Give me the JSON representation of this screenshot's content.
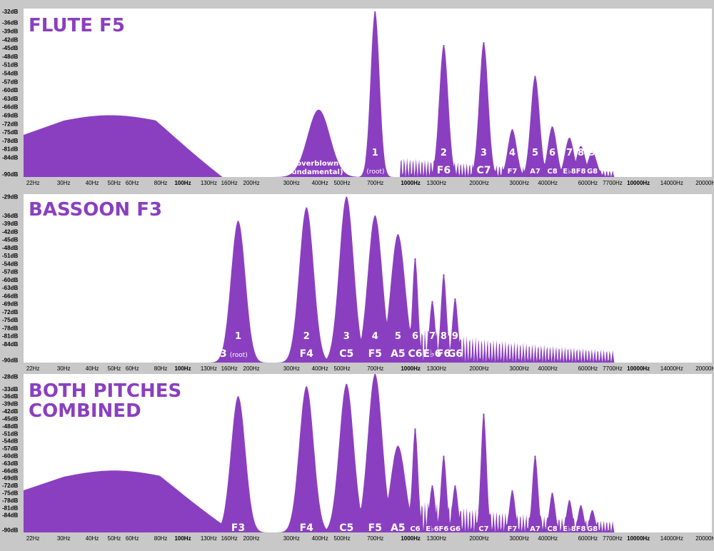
{
  "colors": {
    "fill": "#8a3fc0",
    "plot_bg": "#ffffff",
    "frame_bg": "#c8c8c8",
    "label": "#ffffff"
  },
  "x_axis": {
    "scale": "log",
    "range_hz": [
      20,
      21000
    ],
    "ticks": [
      {
        "hz": 22,
        "label": "22Hz"
      },
      {
        "hz": 30,
        "label": "30Hz"
      },
      {
        "hz": 40,
        "label": "40Hz"
      },
      {
        "hz": 50,
        "label": "50Hz"
      },
      {
        "hz": 60,
        "label": "60Hz"
      },
      {
        "hz": 80,
        "label": "80Hz"
      },
      {
        "hz": 100,
        "label": "100Hz",
        "major": true
      },
      {
        "hz": 130,
        "label": "130Hz"
      },
      {
        "hz": 160,
        "label": "160Hz"
      },
      {
        "hz": 200,
        "label": "200Hz"
      },
      {
        "hz": 300,
        "label": "300Hz"
      },
      {
        "hz": 400,
        "label": "400Hz"
      },
      {
        "hz": 500,
        "label": "500Hz"
      },
      {
        "hz": 700,
        "label": "700Hz"
      },
      {
        "hz": 1000,
        "label": "1000Hz",
        "major": true
      },
      {
        "hz": 1300,
        "label": "1300Hz"
      },
      {
        "hz": 2000,
        "label": "2000Hz"
      },
      {
        "hz": 3000,
        "label": "3000Hz"
      },
      {
        "hz": 4000,
        "label": "4000Hz"
      },
      {
        "hz": 6000,
        "label": "6000Hz"
      },
      {
        "hz": 7700,
        "label": "7700Hz"
      },
      {
        "hz": 10000,
        "label": "10000Hz",
        "major": true
      },
      {
        "hz": 14000,
        "label": "14000Hz"
      },
      {
        "hz": 20000,
        "label": "20000Hz"
      }
    ]
  },
  "chart_data": [
    {
      "type": "area",
      "title": "FLUTE F5",
      "ylim": [
        -91,
        -31
      ],
      "y_ticks": [
        "-32dB",
        "-36dB",
        "-39dB",
        "-42dB",
        "-45dB",
        "-48dB",
        "-51dB",
        "-54dB",
        "-57dB",
        "-60dB",
        "-63dB",
        "-66dB",
        "-69dB",
        "-72dB",
        "-75dB",
        "-78dB",
        "-81dB",
        "-84dB",
        "-90dB"
      ],
      "y_tick_values": [
        -32,
        -36,
        -39,
        -42,
        -45,
        -48,
        -51,
        -54,
        -57,
        -60,
        -63,
        -66,
        -69,
        -72,
        -75,
        -78,
        -81,
        -84,
        -90
      ],
      "hump": {
        "center_hz": 48,
        "peak_db": -69,
        "start_db": -76
      },
      "annotation": "(overblown fundamental)",
      "annotation_peak": {
        "hz": 395,
        "db": -67
      },
      "peaks": [
        {
          "hz": 698,
          "db": -32,
          "num": "1",
          "note": "F5",
          "suffix": "(root)"
        },
        {
          "hz": 1397,
          "db": -44,
          "num": "2",
          "note": "F6"
        },
        {
          "hz": 2093,
          "db": -43,
          "num": "3",
          "note": "C7"
        },
        {
          "hz": 2794,
          "db": -74,
          "num": "4",
          "note": "F7"
        },
        {
          "hz": 3520,
          "db": -55,
          "num": "5",
          "note": "A7"
        },
        {
          "hz": 4186,
          "db": -73,
          "num": "6",
          "note": "C8"
        },
        {
          "hz": 4978,
          "db": -77,
          "num": "7",
          "note": "E♭8"
        },
        {
          "hz": 5588,
          "db": -80,
          "num": "8",
          "note": "F8"
        },
        {
          "hz": 6272,
          "db": -82,
          "num": "9",
          "note": "G8"
        }
      ]
    },
    {
      "type": "area",
      "title": "BASSOON F3",
      "ylim": [
        -91,
        -28
      ],
      "y_ticks": [
        "-29dB",
        "-36dB",
        "-39dB",
        "-42dB",
        "-45dB",
        "-48dB",
        "-51dB",
        "-54dB",
        "-57dB",
        "-60dB",
        "-63dB",
        "-66dB",
        "-69dB",
        "-72dB",
        "-75dB",
        "-78dB",
        "-81dB",
        "-84dB",
        "-90dB"
      ],
      "y_tick_values": [
        -29,
        -36,
        -39,
        -42,
        -45,
        -48,
        -51,
        -54,
        -57,
        -60,
        -63,
        -66,
        -69,
        -72,
        -75,
        -78,
        -81,
        -84,
        -90
      ],
      "peaks": [
        {
          "hz": 175,
          "db": -38,
          "num": "1",
          "note": "F3",
          "suffix": "(root)"
        },
        {
          "hz": 349,
          "db": -33,
          "num": "2",
          "note": "F4"
        },
        {
          "hz": 523,
          "db": -29,
          "num": "3",
          "note": "C5"
        },
        {
          "hz": 698,
          "db": -36,
          "num": "4",
          "note": "F5"
        },
        {
          "hz": 880,
          "db": -43,
          "num": "5",
          "note": "A5"
        },
        {
          "hz": 1047,
          "db": -52,
          "num": "6",
          "note": "C6"
        },
        {
          "hz": 1245,
          "db": -68,
          "num": "7",
          "note": "E♭6"
        },
        {
          "hz": 1397,
          "db": -58,
          "num": "8",
          "note": "F6"
        },
        {
          "hz": 1568,
          "db": -67,
          "num": "9",
          "note": "G6"
        }
      ]
    },
    {
      "type": "area",
      "title": "BOTH PITCHES COMBINED",
      "ylim": [
        -91,
        -27
      ],
      "y_ticks": [
        "-28dB",
        "-33dB",
        "-36dB",
        "-39dB",
        "-42dB",
        "-45dB",
        "-48dB",
        "-51dB",
        "-54dB",
        "-57dB",
        "-60dB",
        "-63dB",
        "-66dB",
        "-69dB",
        "-72dB",
        "-75dB",
        "-78dB",
        "-81dB",
        "-84dB",
        "-90dB"
      ],
      "y_tick_values": [
        -28,
        -33,
        -36,
        -39,
        -42,
        -45,
        -48,
        -51,
        -54,
        -57,
        -60,
        -63,
        -66,
        -69,
        -72,
        -75,
        -78,
        -81,
        -84,
        -90
      ],
      "hump": {
        "center_hz": 50,
        "peak_db": -66,
        "start_db": -74
      },
      "peaks": [
        {
          "hz": 175,
          "db": -36,
          "note": "F3"
        },
        {
          "hz": 349,
          "db": -32,
          "note": "F4"
        },
        {
          "hz": 523,
          "db": -31,
          "note": "C5"
        },
        {
          "hz": 698,
          "db": -27,
          "note": "F5"
        },
        {
          "hz": 880,
          "db": -56,
          "note": "A5"
        },
        {
          "hz": 1047,
          "db": -49,
          "note": "C6",
          "small": true
        },
        {
          "hz": 1245,
          "db": -72,
          "note": "E♭6",
          "small": true
        },
        {
          "hz": 1397,
          "db": -60,
          "note": "F6",
          "small": true
        },
        {
          "hz": 1568,
          "db": -72,
          "note": "G6",
          "small": true
        },
        {
          "hz": 2093,
          "db": -43,
          "note": "C7",
          "small": true
        },
        {
          "hz": 2794,
          "db": -74,
          "note": "F7",
          "small": true
        },
        {
          "hz": 3520,
          "db": -60,
          "note": "A7",
          "small": true
        },
        {
          "hz": 4186,
          "db": -75,
          "note": "C8",
          "small": true
        },
        {
          "hz": 4978,
          "db": -78,
          "note": "E♭8",
          "small": true
        },
        {
          "hz": 5588,
          "db": -80,
          "note": "F8",
          "small": true
        },
        {
          "hz": 6272,
          "db": -82,
          "note": "G8",
          "small": true
        }
      ]
    }
  ]
}
